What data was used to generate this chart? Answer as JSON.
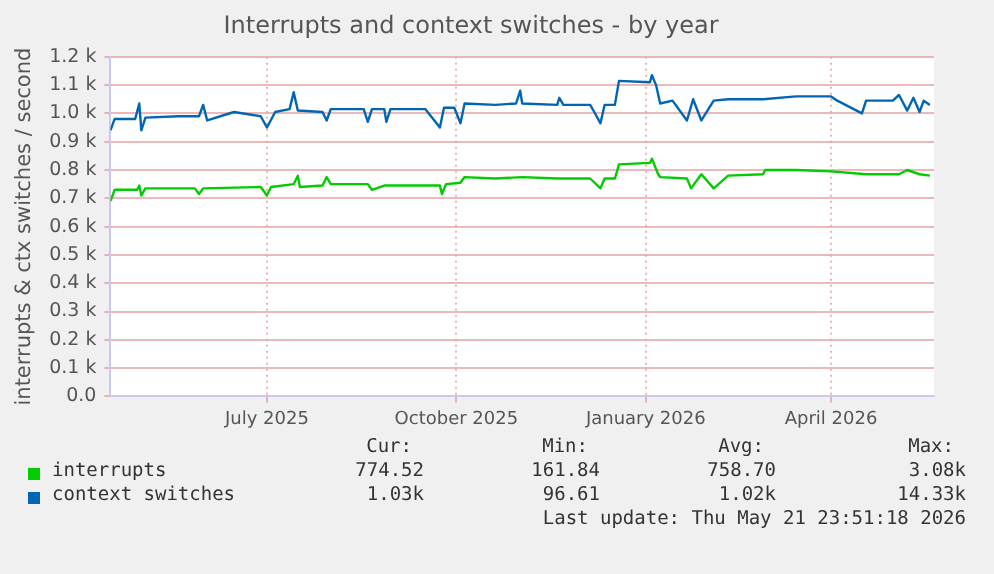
{
  "chart_data": {
    "type": "line",
    "title": "Interrupts and context switches - by year",
    "ylabel": "interrupts & ctx switches / second",
    "xlim": [
      "2025-04-16",
      "2026-05-21"
    ],
    "xticks": [
      {
        "value": "2025-07-01",
        "label": "July 2025"
      },
      {
        "value": "2025-10-01",
        "label": "October 2025"
      },
      {
        "value": "2026-01-01",
        "label": "January 2026"
      },
      {
        "value": "2026-04-01",
        "label": "April 2026"
      }
    ],
    "ylim": [
      0,
      1200
    ],
    "yticks": [
      {
        "value": 0,
        "label": "0.0"
      },
      {
        "value": 100,
        "label": "0.1 k"
      },
      {
        "value": 200,
        "label": "0.2 k"
      },
      {
        "value": 300,
        "label": "0.3 k"
      },
      {
        "value": 400,
        "label": "0.4 k"
      },
      {
        "value": 500,
        "label": "0.5 k"
      },
      {
        "value": 600,
        "label": "0.6 k"
      },
      {
        "value": 700,
        "label": "0.7 k"
      },
      {
        "value": 800,
        "label": "0.8 k"
      },
      {
        "value": 900,
        "label": "0.9 k"
      },
      {
        "value": 1000,
        "label": "1.0 k"
      },
      {
        "value": 1100,
        "label": "1.1 k"
      },
      {
        "value": 1200,
        "label": "1.2 k"
      }
    ],
    "grid": true,
    "legend": "bottom",
    "marker": "none",
    "line_style": "solid",
    "series": [
      {
        "name": "interrupts",
        "color": "#00cc00",
        "x": [
          "2025-04-16",
          "2025-04-18",
          "2025-04-29",
          "2025-04-30",
          "2025-05-01",
          "2025-05-03",
          "2025-05-27",
          "2025-05-29",
          "2025-05-31",
          "2025-06-28",
          "2025-07-01",
          "2025-07-03",
          "2025-07-14",
          "2025-07-16",
          "2025-07-17",
          "2025-07-28",
          "2025-07-30",
          "2025-08-01",
          "2025-08-19",
          "2025-08-21",
          "2025-08-27",
          "2025-09-23",
          "2025-09-24",
          "2025-09-26",
          "2025-10-03",
          "2025-10-05",
          "2025-10-20",
          "2025-11-02",
          "2025-11-19",
          "2025-12-05",
          "2025-12-10",
          "2025-12-12",
          "2025-12-17",
          "2025-12-19",
          "2026-01-03",
          "2026-01-04",
          "2026-01-07",
          "2026-01-08",
          "2026-01-21",
          "2026-01-23",
          "2026-01-28",
          "2026-02-03",
          "2026-02-10",
          "2026-02-27",
          "2026-02-28",
          "2026-03-15",
          "2026-04-01",
          "2026-04-18",
          "2026-05-04",
          "2026-05-08",
          "2026-05-14",
          "2026-05-19"
        ],
        "values": [
          690,
          730,
          730,
          745,
          710,
          735,
          735,
          715,
          735,
          740,
          710,
          740,
          750,
          780,
          740,
          745,
          775,
          750,
          750,
          730,
          745,
          745,
          715,
          750,
          755,
          775,
          770,
          775,
          770,
          770,
          735,
          770,
          770,
          820,
          825,
          840,
          785,
          775,
          770,
          735,
          785,
          735,
          780,
          785,
          800,
          800,
          795,
          785,
          785,
          800,
          785,
          780
        ]
      },
      {
        "name": "context switches",
        "color": "#0066b3",
        "x": [
          "2025-04-16",
          "2025-04-18",
          "2025-04-28",
          "2025-04-30",
          "2025-05-01",
          "2025-05-03",
          "2025-05-19",
          "2025-05-29",
          "2025-05-31",
          "2025-06-02",
          "2025-06-15",
          "2025-06-28",
          "2025-07-01",
          "2025-07-05",
          "2025-07-12",
          "2025-07-14",
          "2025-07-16",
          "2025-07-28",
          "2025-07-30",
          "2025-08-01",
          "2025-08-17",
          "2025-08-19",
          "2025-08-21",
          "2025-08-27",
          "2025-08-28",
          "2025-08-30",
          "2025-09-16",
          "2025-09-23",
          "2025-09-25",
          "2025-09-30",
          "2025-10-03",
          "2025-10-05",
          "2025-10-20",
          "2025-10-30",
          "2025-11-01",
          "2025-11-02",
          "2025-11-19",
          "2025-11-20",
          "2025-11-22",
          "2025-12-05",
          "2025-12-07",
          "2025-12-10",
          "2025-12-12",
          "2025-12-17",
          "2025-12-19",
          "2026-01-03",
          "2026-01-04",
          "2026-01-06",
          "2026-01-08",
          "2026-01-14",
          "2026-01-21",
          "2026-01-24",
          "2026-01-28",
          "2026-02-03",
          "2026-02-10",
          "2026-02-27",
          "2026-03-15",
          "2026-04-01",
          "2026-04-04",
          "2026-04-16",
          "2026-04-18",
          "2026-05-01",
          "2026-05-04",
          "2026-05-08",
          "2026-05-11",
          "2026-05-14",
          "2026-05-16",
          "2026-05-19"
        ],
        "values": [
          940,
          980,
          980,
          1035,
          940,
          985,
          990,
          990,
          1030,
          975,
          1005,
          990,
          950,
          1005,
          1015,
          1075,
          1010,
          1005,
          975,
          1015,
          1015,
          970,
          1015,
          1015,
          970,
          1015,
          1015,
          950,
          1020,
          1020,
          965,
          1035,
          1030,
          1035,
          1080,
          1035,
          1030,
          1055,
          1030,
          1030,
          1005,
          965,
          1030,
          1030,
          1115,
          1110,
          1135,
          1100,
          1035,
          1045,
          975,
          1050,
          975,
          1045,
          1050,
          1050,
          1060,
          1060,
          1045,
          1000,
          1045,
          1045,
          1065,
          1010,
          1055,
          1005,
          1045,
          1030
        ]
      }
    ],
    "annotations": [
      "Cur:",
      "Min:",
      "Avg:",
      "Max:",
      "774.52",
      "161.84",
      "758.70",
      "3.08k",
      "1.03k",
      "96.61",
      "1.02k",
      "14.33k",
      "Last update: Thu May 21 23:51:18 2026"
    ]
  }
}
